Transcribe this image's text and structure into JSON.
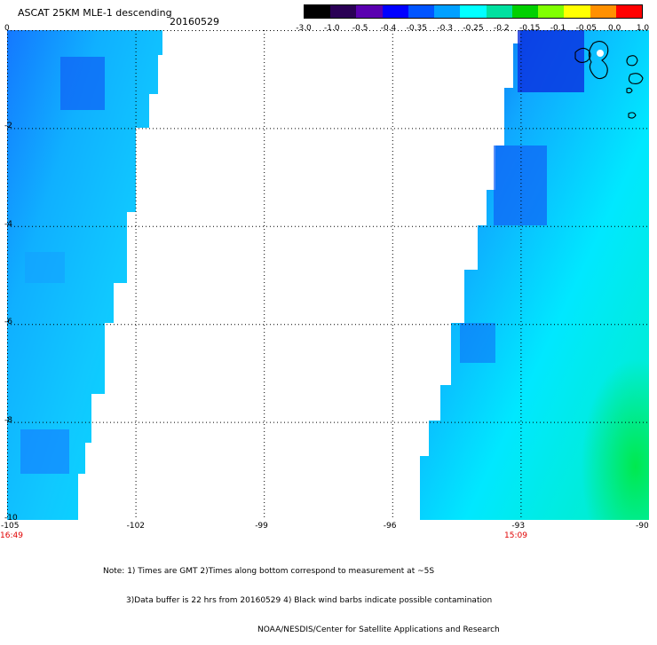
{
  "header": {
    "title": "ASCAT 25KM MLE-1 descending",
    "date": "20160529"
  },
  "colorbar": {
    "labels": [
      "-3.0",
      "-1.0",
      "-0.5",
      "-0.4",
      "-0.35",
      "-0.3",
      "-0.25",
      "-0.2",
      "-0.15",
      "-0.1",
      "-0.05",
      "0.0",
      "1.0"
    ],
    "colors": [
      "#000000",
      "#2a0055",
      "#5a00b0",
      "#0000ff",
      "#0055ff",
      "#00a0ff",
      "#00ffff",
      "#00e0a0",
      "#00d000",
      "#80ff00",
      "#ffff00",
      "#ff9000",
      "#ff0000"
    ]
  },
  "map": {
    "lat_labels": [
      "0",
      "-2",
      "-4",
      "-6",
      "-8",
      "-10"
    ],
    "lon_labels": [
      "-105",
      "-102",
      "-99",
      "-96",
      "-93",
      "-90"
    ],
    "time_labels": [
      "16:49",
      "15:09"
    ],
    "swath_colors": {
      "deep": "#0a2ee0",
      "blue": "#1060f5",
      "mid": "#14a0ff",
      "cyan": "#00f0ff",
      "green": "#00e890"
    }
  },
  "notes": {
    "line1": "Note: 1) Times are GMT 2)Times along bottom correspond to measurement at ~5S",
    "line2": "3)Data buffer is 22 hrs from 20160529 4) Black wind barbs indicate possible contamination",
    "line3": "NOAA/NESDIS/Center for Satellite Applications and Research"
  }
}
